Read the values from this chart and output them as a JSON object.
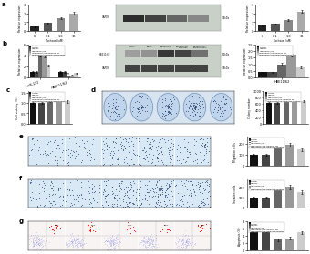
{
  "panel_a_bar_left": {
    "groups": [
      "0",
      "0.1",
      "1.0",
      "10"
    ],
    "values": [
      0.5,
      0.9,
      1.5,
      2.0
    ],
    "errors": [
      0.05,
      0.08,
      0.1,
      0.12
    ],
    "colors": [
      "#222222",
      "#555555",
      "#888888",
      "#aaaaaa"
    ],
    "ylabel": "Relative expression",
    "xlabel": "Taxitaxel (uM)"
  },
  "panel_a_bar_right": {
    "groups": [
      "0",
      "0.1",
      "1.0",
      "10"
    ],
    "values": [
      0.6,
      0.8,
      1.3,
      2.2
    ],
    "errors": [
      0.05,
      0.07,
      0.1,
      0.15
    ],
    "colors": [
      "#222222",
      "#555555",
      "#888888",
      "#aaaaaa"
    ],
    "ylabel": "Relative expression",
    "xlabel": "Taxitaxel (uM)"
  },
  "panel_b_bar_left": {
    "x_labels": [
      "miR-122",
      "HBEF11/62"
    ],
    "series": [
      {
        "label": "control",
        "values": [
          1.0,
          1.0
        ],
        "color": "#111111",
        "hatch": ""
      },
      {
        "label": "miR-NC",
        "values": [
          1.0,
          1.0
        ],
        "color": "#444444",
        "hatch": ""
      },
      {
        "label": "miR-HBE11/62",
        "values": [
          4.2,
          0.35
        ],
        "color": "#666666",
        "hatch": "///"
      },
      {
        "label": "miR-HBE11/62+mimics NC",
        "values": [
          4.0,
          0.4
        ],
        "color": "#999999",
        "hatch": ""
      },
      {
        "label": "miR-HBE11/62+miR-34a mimics",
        "values": [
          2.2,
          0.8
        ],
        "color": "#cccccc",
        "hatch": ""
      }
    ],
    "errors": [
      [
        0.1,
        0.1
      ],
      [
        0.1,
        0.1
      ],
      [
        0.3,
        0.05
      ],
      [
        0.3,
        0.05
      ],
      [
        0.2,
        0.1
      ]
    ],
    "ylabel": "Relative expression"
  },
  "panel_b_bar_right": {
    "x_labels": [
      "HBE11/62"
    ],
    "series": [
      {
        "label": "control",
        "values": [
          0.4
        ],
        "color": "#111111",
        "hatch": ""
      },
      {
        "label": "miR-NC",
        "values": [
          0.4
        ],
        "color": "#444444",
        "hatch": ""
      },
      {
        "label": "miR-HBE11/62",
        "values": [
          1.0
        ],
        "color": "#666666",
        "hatch": "///"
      },
      {
        "label": "miR-HBE11/62+mimics NC",
        "values": [
          1.7
        ],
        "color": "#999999",
        "hatch": ""
      },
      {
        "label": "miR-HBE11/62+miR-34a mimics",
        "values": [
          0.75
        ],
        "color": "#cccccc",
        "hatch": ""
      }
    ],
    "errors": [
      [
        0.05
      ],
      [
        0.05
      ],
      [
        0.1
      ],
      [
        0.1
      ],
      [
        0.08
      ]
    ],
    "ylabel": "Relative expression"
  },
  "panel_c_bar": {
    "values": [
      1.0,
      1.0,
      1.12,
      1.25,
      1.08
    ],
    "errors": [
      0.04,
      0.04,
      0.08,
      0.1,
      0.07
    ],
    "colors": [
      "#111111",
      "#444444",
      "#666666",
      "#999999",
      "#cccccc"
    ],
    "ylabel": "Cell viability (%)"
  },
  "panel_d_bar": {
    "values": [
      640,
      630,
      760,
      790,
      680
    ],
    "errors": [
      25,
      25,
      35,
      45,
      35
    ],
    "colors": [
      "#111111",
      "#444444",
      "#666666",
      "#999999",
      "#cccccc"
    ],
    "ylabel": "Colony number"
  },
  "panel_e_bar": {
    "values": [
      100,
      95,
      175,
      190,
      145
    ],
    "errors": [
      8,
      8,
      14,
      18,
      13
    ],
    "colors": [
      "#111111",
      "#444444",
      "#666666",
      "#999999",
      "#cccccc"
    ],
    "ylabel": "Migration cells"
  },
  "panel_f_bar": {
    "values": [
      100,
      98,
      195,
      205,
      155
    ],
    "errors": [
      9,
      9,
      18,
      22,
      18
    ],
    "colors": [
      "#111111",
      "#444444",
      "#666666",
      "#999999",
      "#cccccc"
    ],
    "ylabel": "Invasion cells"
  },
  "panel_g_bar": {
    "values": [
      5.0,
      5.2,
      2.8,
      3.2,
      4.8
    ],
    "errors": [
      0.4,
      0.4,
      0.4,
      0.4,
      0.4
    ],
    "colors": [
      "#111111",
      "#444444",
      "#666666",
      "#999999",
      "#cccccc"
    ],
    "ylabel": "Apoptosis (%)"
  },
  "legend_labels": [
    "control",
    "miR-NC",
    "miR-HBE11/62",
    "miR-HBE11/62+mimics NC",
    "miR-HBE11/62+miR-34a mimics"
  ],
  "legend_colors": [
    "#111111",
    "#444444",
    "#666666",
    "#999999",
    "#cccccc"
  ],
  "wb_a_label": "GAPDH",
  "wb_a_kda": "37kDa",
  "wb_b_label1": "HBE11/62",
  "wb_b_label2": "GAPDH",
  "wb_b_kda1": "81kDa",
  "wb_b_kda2": "37kDa",
  "bg_color": "#ffffff"
}
